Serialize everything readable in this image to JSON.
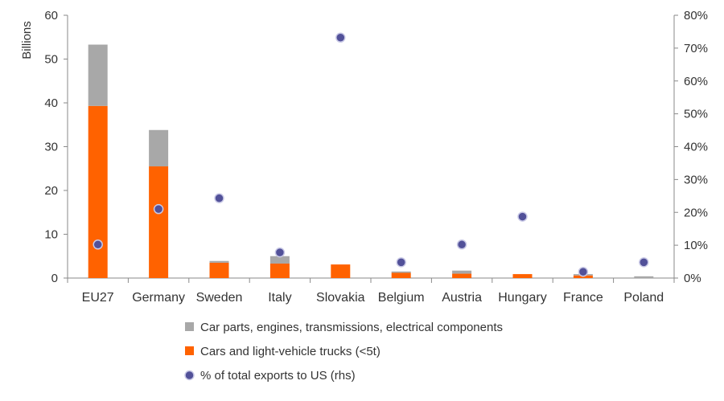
{
  "chart_data": {
    "type": "bar",
    "stacked": true,
    "categories": [
      "EU27",
      "Germany",
      "Sweden",
      "Italy",
      "Slovakia",
      "Belgium",
      "Austria",
      "Hungary",
      "France",
      "Poland"
    ],
    "series": [
      {
        "name": "Cars and light-vehicle trucks (<5t)",
        "kind": "bar",
        "axis": "left",
        "color": "#FF6200",
        "values": [
          39.3,
          25.5,
          3.5,
          3.3,
          3.1,
          1.2,
          1.0,
          0.9,
          0.6,
          0.0
        ]
      },
      {
        "name": "Car parts, engines, transmissions, electrical components",
        "kind": "bar",
        "axis": "left",
        "color": "#A8A8A8",
        "values": [
          14.0,
          8.3,
          0.4,
          1.7,
          0.0,
          0.3,
          0.7,
          0.0,
          0.3,
          0.4
        ]
      },
      {
        "name": "% of total exports to US (rhs)",
        "kind": "scatter",
        "axis": "right",
        "color": "#525199",
        "values": [
          10.2,
          21.0,
          24.3,
          7.8,
          73.2,
          4.8,
          10.2,
          18.7,
          1.9,
          4.8
        ]
      }
    ],
    "ylabel": "Billions",
    "ylim": [
      0,
      60
    ],
    "yticks": [
      "0",
      "10",
      "20",
      "30",
      "40",
      "50",
      "60"
    ],
    "y2lim": [
      0,
      80
    ],
    "y2ticks": [
      "0%",
      "10%",
      "20%",
      "30%",
      "40%",
      "50%",
      "60%",
      "70%",
      "80%"
    ],
    "legend_position": "bottom",
    "legend_order": [
      1,
      0,
      2
    ],
    "grid": false
  }
}
